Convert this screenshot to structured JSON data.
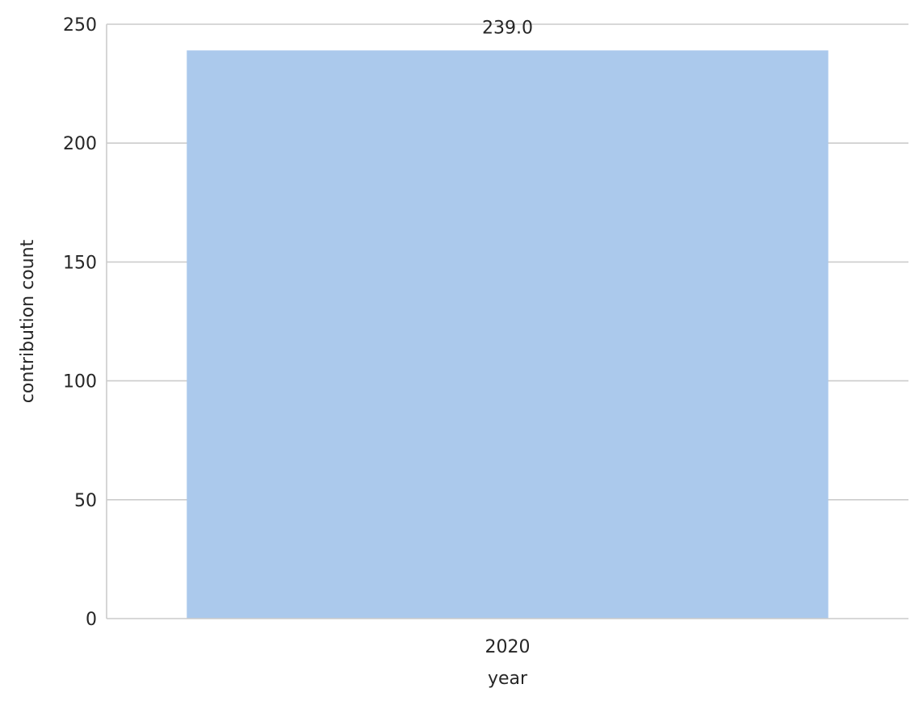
{
  "chart_data": {
    "type": "bar",
    "categories": [
      "2020"
    ],
    "values": [
      239.0
    ],
    "data_labels": [
      "239.0"
    ],
    "xlabel": "year",
    "ylabel": "contribution count",
    "ylim": [
      0,
      250
    ],
    "yticks": [
      0,
      50,
      100,
      150,
      200,
      250
    ],
    "ytick_labels": [
      "0",
      "50",
      "100",
      "150",
      "200",
      "250"
    ],
    "grid": "horizontal",
    "bar_color": "#abc9ec"
  }
}
